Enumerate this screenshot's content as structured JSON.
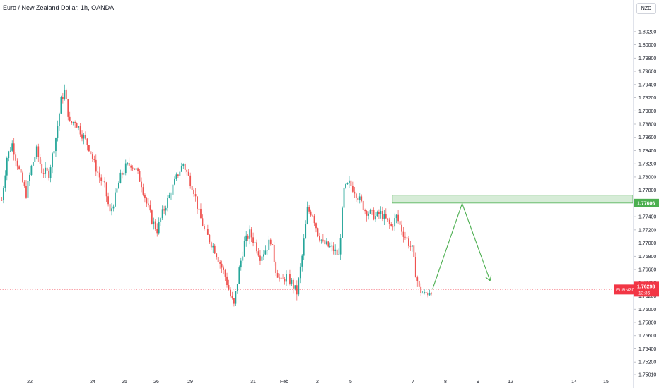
{
  "header": {
    "title": "Euro / New Zealand Dollar, 1h, OANDA",
    "currency_button": "NZD"
  },
  "colors": {
    "up": "#26a69a",
    "down": "#ef5350",
    "zone_fill": "#c8e6c9",
    "zone_stroke": "#4caf50",
    "arrow": "#4caf50",
    "price_line": "#f23645",
    "zone_label": "#4caf50"
  },
  "chart_data": {
    "type": "candlestick",
    "title": "Euro / New Zealand Dollar, 1h, OANDA",
    "y_ticks": [
      "1.80200",
      "1.80000",
      "1.79800",
      "1.79600",
      "1.79400",
      "1.79200",
      "1.79000",
      "1.78800",
      "1.78600",
      "1.78400",
      "1.78200",
      "1.78000",
      "1.77800",
      "1.77600",
      "1.77400",
      "1.77200",
      "1.77000",
      "1.76800",
      "1.76600",
      "1.76400",
      "1.76200",
      "1.76000",
      "1.75800",
      "1.75600",
      "1.75400",
      "1.75200",
      "1.75010"
    ],
    "ylim": [
      1.7501,
      1.8038
    ],
    "x_ticks": [
      "22",
      "24",
      "25",
      "26",
      "29",
      "31",
      "Feb",
      "2",
      "5",
      "7",
      "8",
      "9",
      "12",
      "14",
      "15"
    ],
    "keypoints": [
      {
        "i": 0,
        "p": 1.7765
      },
      {
        "i": 3,
        "p": 1.783
      },
      {
        "i": 6,
        "p": 1.785
      },
      {
        "i": 9,
        "p": 1.782
      },
      {
        "i": 11,
        "p": 1.78
      },
      {
        "i": 14,
        "p": 1.7775
      },
      {
        "i": 17,
        "p": 1.7815
      },
      {
        "i": 20,
        "p": 1.784
      },
      {
        "i": 23,
        "p": 1.781
      },
      {
        "i": 27,
        "p": 1.7805
      },
      {
        "i": 31,
        "p": 1.786
      },
      {
        "i": 34,
        "p": 1.7915
      },
      {
        "i": 36,
        "p": 1.793
      },
      {
        "i": 39,
        "p": 1.788
      },
      {
        "i": 42,
        "p": 1.7885
      },
      {
        "i": 46,
        "p": 1.7865
      },
      {
        "i": 50,
        "p": 1.7845
      },
      {
        "i": 53,
        "p": 1.782
      },
      {
        "i": 56,
        "p": 1.78
      },
      {
        "i": 59,
        "p": 1.7785
      },
      {
        "i": 62,
        "p": 1.7745
      },
      {
        "i": 65,
        "p": 1.777
      },
      {
        "i": 68,
        "p": 1.78
      },
      {
        "i": 71,
        "p": 1.7815
      },
      {
        "i": 74,
        "p": 1.782
      },
      {
        "i": 77,
        "p": 1.781
      },
      {
        "i": 80,
        "p": 1.779
      },
      {
        "i": 83,
        "p": 1.776
      },
      {
        "i": 86,
        "p": 1.7735
      },
      {
        "i": 89,
        "p": 1.772
      },
      {
        "i": 92,
        "p": 1.7745
      },
      {
        "i": 95,
        "p": 1.7765
      },
      {
        "i": 98,
        "p": 1.7785
      },
      {
        "i": 101,
        "p": 1.7805
      },
      {
        "i": 104,
        "p": 1.782
      },
      {
        "i": 107,
        "p": 1.78
      },
      {
        "i": 110,
        "p": 1.778
      },
      {
        "i": 113,
        "p": 1.7745
      },
      {
        "i": 116,
        "p": 1.772
      },
      {
        "i": 119,
        "p": 1.7705
      },
      {
        "i": 122,
        "p": 1.769
      },
      {
        "i": 125,
        "p": 1.767
      },
      {
        "i": 128,
        "p": 1.765
      },
      {
        "i": 131,
        "p": 1.762
      },
      {
        "i": 133,
        "p": 1.7605
      },
      {
        "i": 136,
        "p": 1.766
      },
      {
        "i": 139,
        "p": 1.77
      },
      {
        "i": 142,
        "p": 1.7715
      },
      {
        "i": 145,
        "p": 1.77
      },
      {
        "i": 148,
        "p": 1.768
      },
      {
        "i": 151,
        "p": 1.769
      },
      {
        "i": 154,
        "p": 1.7705
      },
      {
        "i": 157,
        "p": 1.766
      },
      {
        "i": 160,
        "p": 1.764
      },
      {
        "i": 163,
        "p": 1.765
      },
      {
        "i": 166,
        "p": 1.764
      },
      {
        "i": 169,
        "p": 1.7625
      },
      {
        "i": 172,
        "p": 1.768
      },
      {
        "i": 175,
        "p": 1.775
      },
      {
        "i": 178,
        "p": 1.7745
      },
      {
        "i": 181,
        "p": 1.7715
      },
      {
        "i": 184,
        "p": 1.77
      },
      {
        "i": 187,
        "p": 1.7695
      },
      {
        "i": 190,
        "p": 1.769
      },
      {
        "i": 193,
        "p": 1.768
      },
      {
        "i": 196,
        "p": 1.778
      },
      {
        "i": 199,
        "p": 1.779
      },
      {
        "i": 202,
        "p": 1.778
      },
      {
        "i": 205,
        "p": 1.7765
      },
      {
        "i": 208,
        "p": 1.775
      },
      {
        "i": 211,
        "p": 1.7745
      },
      {
        "i": 214,
        "p": 1.774
      },
      {
        "i": 217,
        "p": 1.7745
      },
      {
        "i": 220,
        "p": 1.7735
      },
      {
        "i": 223,
        "p": 1.7725
      },
      {
        "i": 226,
        "p": 1.774
      },
      {
        "i": 229,
        "p": 1.772
      },
      {
        "i": 232,
        "p": 1.7705
      },
      {
        "i": 235,
        "p": 1.769
      },
      {
        "i": 237,
        "p": 1.7655
      },
      {
        "i": 239,
        "p": 1.763
      },
      {
        "i": 242,
        "p": 1.7622
      },
      {
        "i": 244,
        "p": 1.7625
      },
      {
        "i": 246,
        "p": 1.763
      }
    ],
    "zone": {
      "y_top": 1.77725,
      "y_bottom": 1.77606,
      "x_start_index": 224,
      "label": "1.77606"
    },
    "current_price": {
      "label": "EURNZD",
      "price": "1.76298",
      "countdown": "13:36",
      "value": 1.76298
    },
    "projection": [
      {
        "i": 247,
        "p": 1.763
      },
      {
        "i": 264,
        "p": 1.776
      },
      {
        "i": 280,
        "p": 1.7643
      }
    ]
  }
}
